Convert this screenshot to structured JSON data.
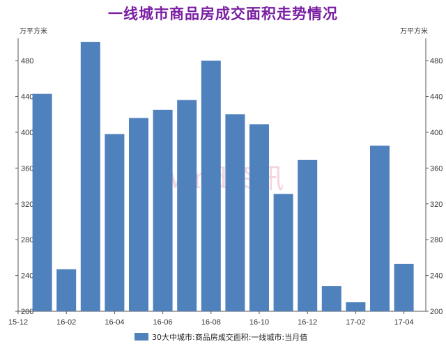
{
  "chart_data": {
    "type": "bar",
    "title": "一线城市商品房成交面积走势情况",
    "y_unit_left": "万平方米",
    "y_unit_right": "万平方米",
    "ylim": [
      200,
      505
    ],
    "yticks": [
      200,
      240,
      280,
      320,
      360,
      400,
      440,
      480
    ],
    "x_tick_labels": [
      "15-12",
      "16-02",
      "16-04",
      "16-06",
      "16-08",
      "16-10",
      "16-12",
      "17-02",
      "17-04"
    ],
    "categories": [
      "16-01",
      "16-02",
      "16-03",
      "16-04",
      "16-05",
      "16-06",
      "16-07",
      "16-08",
      "16-09",
      "16-10",
      "16-11",
      "16-12",
      "17-01",
      "17-02",
      "17-03",
      "17-04"
    ],
    "series": [
      {
        "name": "30大中城市:商品房成交面积:一线城市:当月值",
        "color": "#4f81bd",
        "values": [
          443,
          247,
          501,
          398,
          416,
          425,
          436,
          480,
          420,
          409,
          331,
          369,
          228,
          210,
          385,
          253
        ]
      }
    ],
    "grid": false,
    "legend_position": "bottom",
    "watermark": "Wind资讯"
  }
}
